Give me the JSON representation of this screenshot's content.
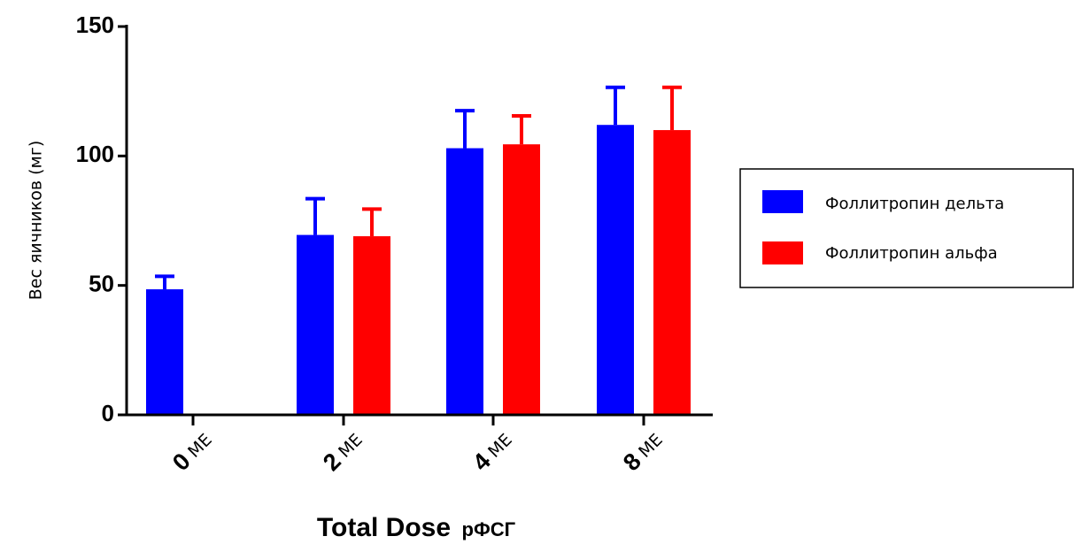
{
  "chart_data": {
    "type": "bar",
    "categories": [
      "0",
      "2",
      "4",
      "8"
    ],
    "category_unit": "МЕ",
    "series": [
      {
        "name": "Фоллитропин дельта",
        "color": "#0000ff",
        "values": [
          48.5,
          69.5,
          103,
          112
        ],
        "errors": [
          5,
          14,
          14.5,
          14.5
        ]
      },
      {
        "name": "Фоллитропин альфа",
        "color": "#ff0000",
        "values": [
          null,
          69,
          104.5,
          110
        ],
        "errors": [
          null,
          10.5,
          11,
          16.5
        ]
      }
    ],
    "ylabel": "Вес яичников (мг)",
    "xlabel": "Total Dose",
    "xlabel_unit": "рФСГ",
    "ylim": [
      0,
      150
    ],
    "yticks": [
      0,
      50,
      100,
      150
    ],
    "grid": false,
    "legend_position": "right"
  }
}
